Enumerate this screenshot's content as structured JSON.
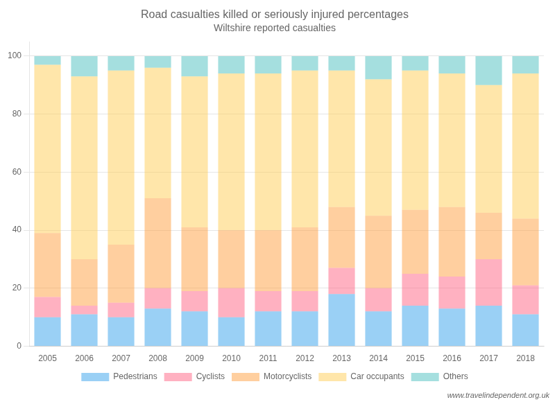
{
  "chart_data": {
    "type": "bar",
    "title": "Road casualties killed or seriously injured percentages",
    "subtitle": "Wiltshire reported casualties",
    "categories": [
      "2005",
      "2006",
      "2007",
      "2008",
      "2009",
      "2010",
      "2011",
      "2012",
      "2013",
      "2014",
      "2015",
      "2016",
      "2017",
      "2018"
    ],
    "series": [
      {
        "name": "Pedestrians",
        "values": [
          10,
          11,
          10,
          13,
          12,
          10,
          12,
          12,
          18,
          12,
          14,
          13,
          14,
          11
        ]
      },
      {
        "name": "Cyclists",
        "values": [
          7,
          3,
          5,
          7,
          7,
          10,
          7,
          7,
          9,
          8,
          11,
          11,
          16,
          10
        ]
      },
      {
        "name": "Motorcyclists",
        "values": [
          22,
          16,
          20,
          31,
          22,
          20,
          21,
          22,
          21,
          25,
          22,
          24,
          16,
          23
        ]
      },
      {
        "name": "Car occupants",
        "values": [
          58,
          63,
          60,
          45,
          52,
          54,
          54,
          54,
          47,
          47,
          48,
          46,
          44,
          50
        ]
      },
      {
        "name": "Others",
        "values": [
          3,
          7,
          5,
          4,
          7,
          6,
          6,
          5,
          5,
          8,
          5,
          6,
          10,
          6
        ]
      }
    ],
    "stacked": true,
    "ylim": [
      0,
      105
    ],
    "yticks": [
      0,
      20,
      40,
      60,
      80,
      100
    ],
    "grid": true,
    "legend": "bottom",
    "annotations": [
      "www.travelindependent.org.uk"
    ]
  }
}
